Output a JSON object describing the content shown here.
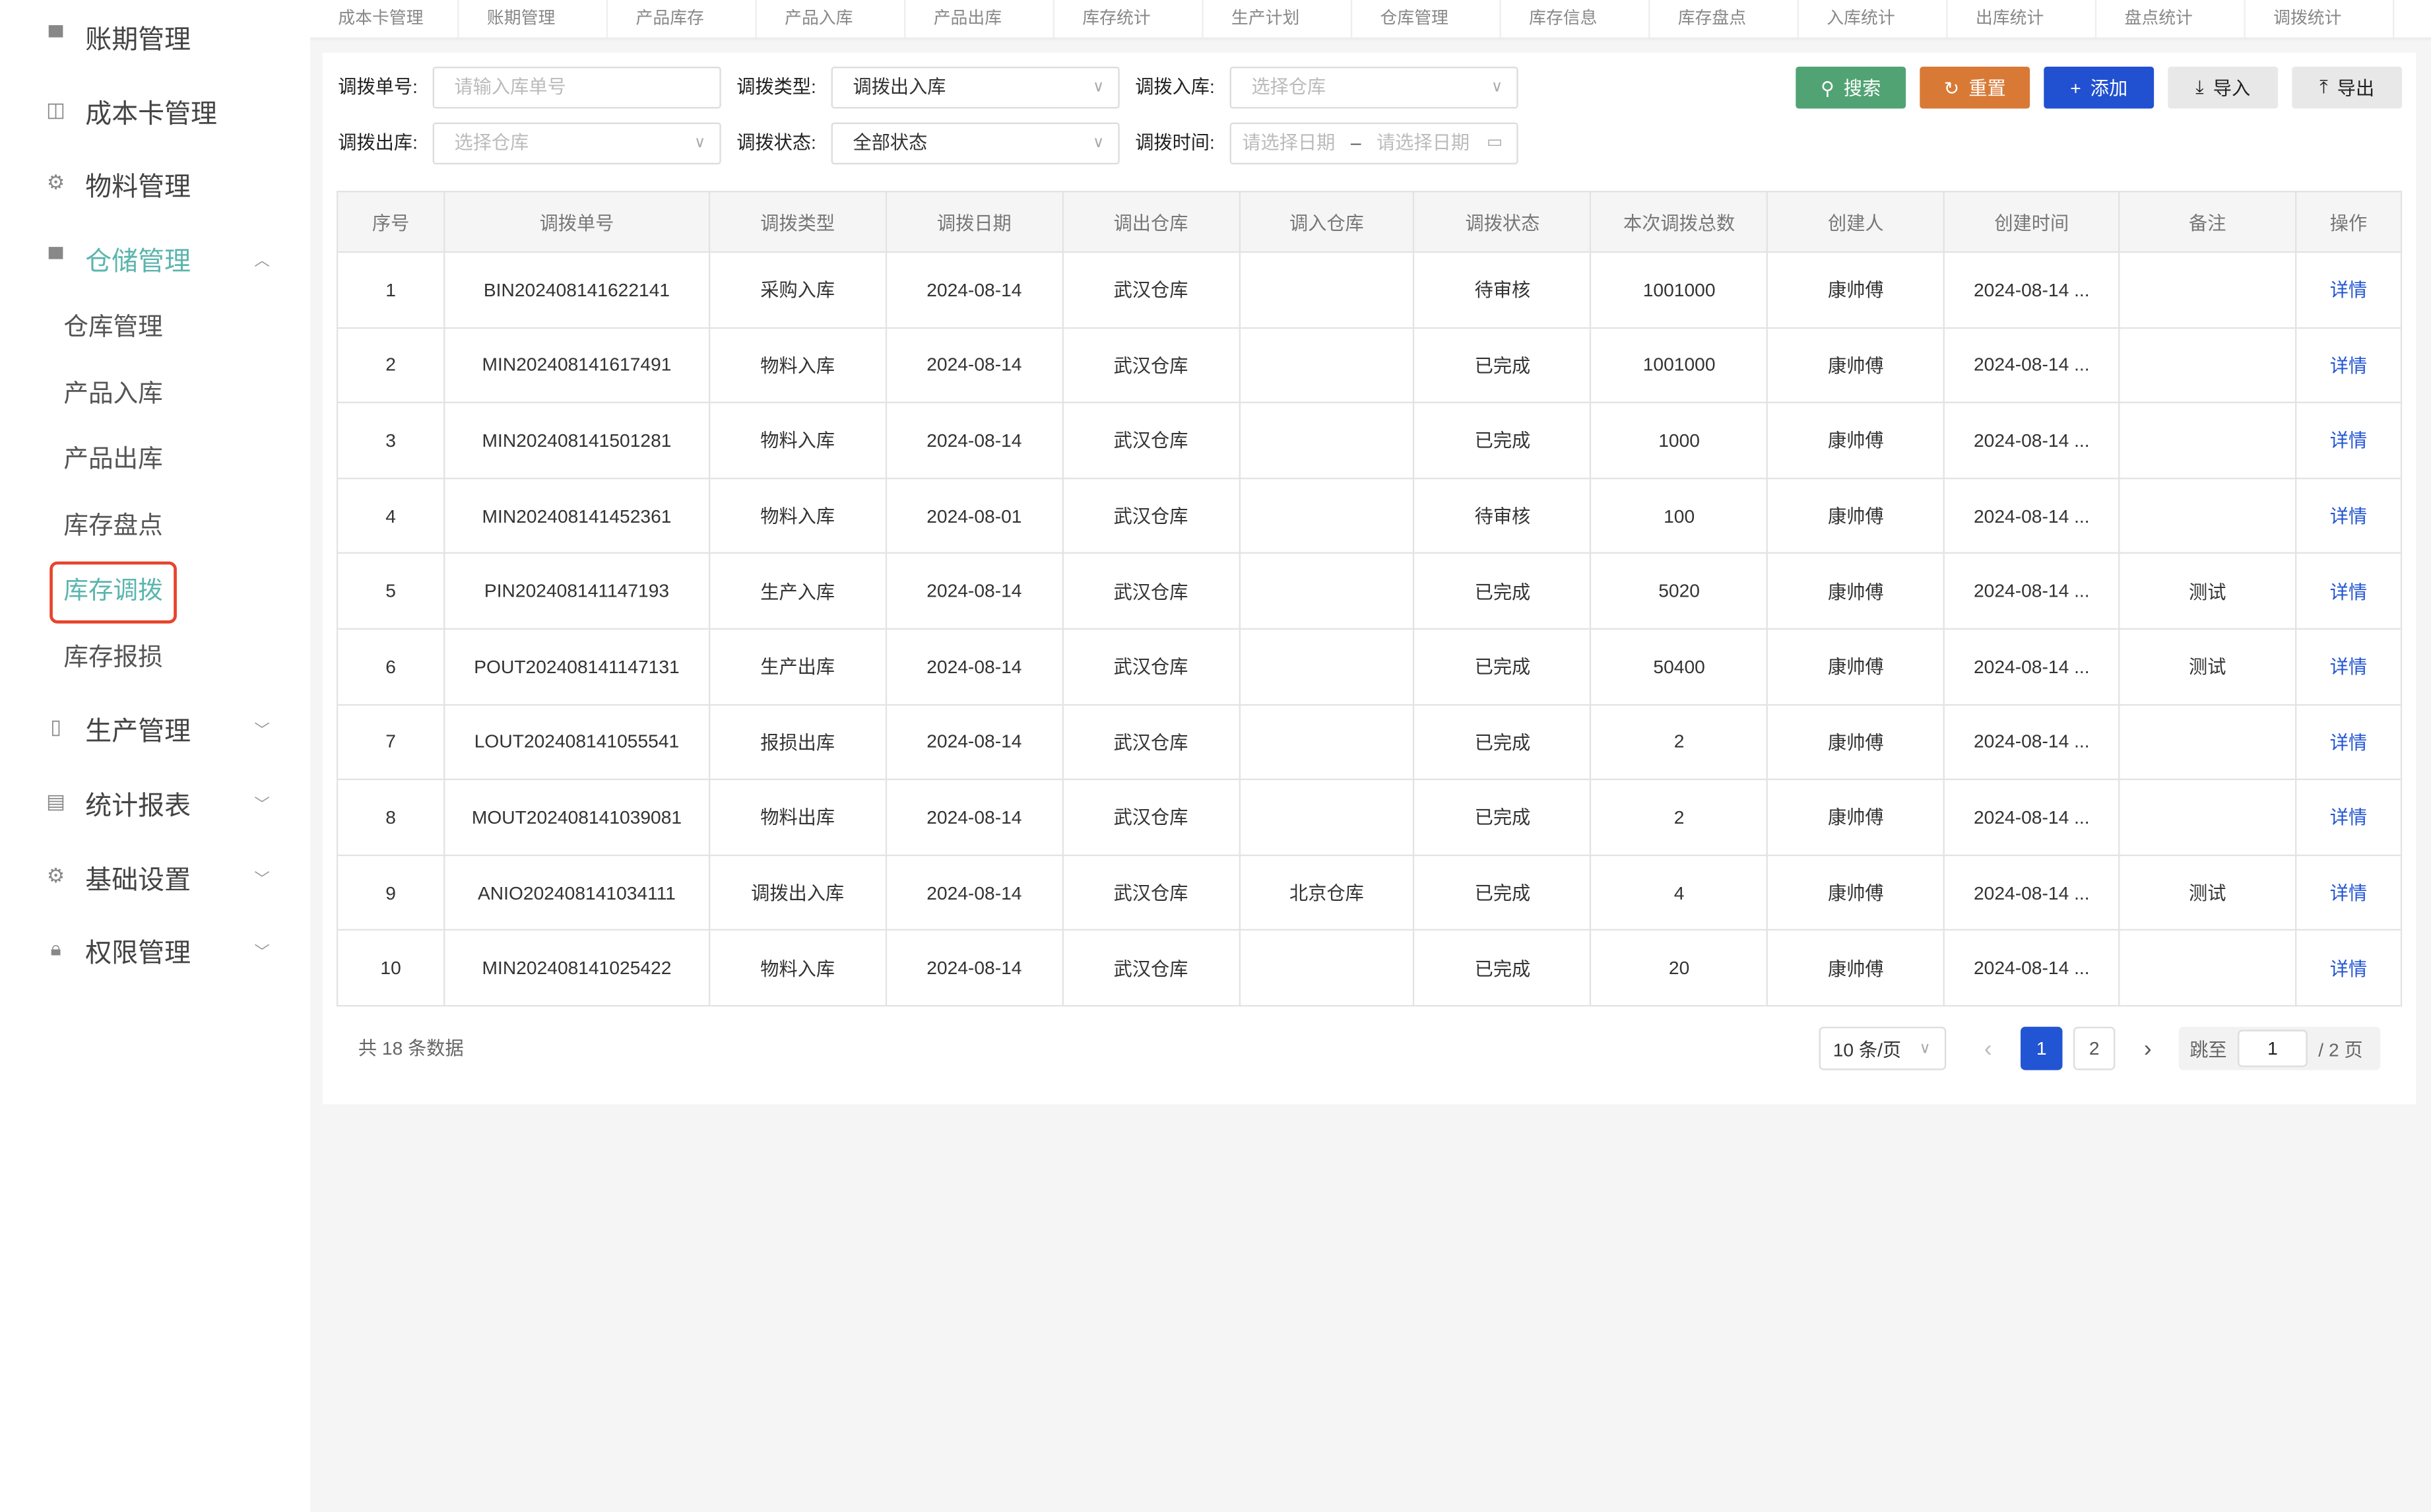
{
  "sidebar": {
    "items": [
      {
        "label": "账期管理",
        "icon": "ledger-icon"
      },
      {
        "label": "成本卡管理",
        "icon": "card-icon"
      },
      {
        "label": "物料管理",
        "icon": "chip-icon"
      },
      {
        "label": "仓储管理",
        "icon": "store-icon",
        "expanded": true,
        "children": [
          "仓库管理",
          "产品入库",
          "产品出库",
          "库存盘点",
          "库存调拨",
          "库存报损"
        ],
        "active_child": "库存调拨"
      },
      {
        "label": "生产管理",
        "icon": "production-icon"
      },
      {
        "label": "统计报表",
        "icon": "report-icon"
      },
      {
        "label": "基础设置",
        "icon": "gear-icon"
      },
      {
        "label": "权限管理",
        "icon": "lock-icon"
      }
    ],
    "accent": "#5bb5ad"
  },
  "tabs": [
    "成本卡管理",
    "账期管理",
    "产品库存",
    "产品入库",
    "产品出库",
    "库存统计",
    "生产计划",
    "仓库管理",
    "库存信息",
    "库存盘点",
    "入库统计",
    "出库统计",
    "盘点统计",
    "调拨统计"
  ],
  "filters": {
    "order_no": {
      "label": "调拨单号:",
      "placeholder": "请输入库单号"
    },
    "type": {
      "label": "调拨类型:",
      "value": "调拨出入库"
    },
    "in_wh": {
      "label": "调拨入库:",
      "placeholder": "选择仓库"
    },
    "out_wh": {
      "label": "调拨出库:",
      "placeholder": "选择仓库"
    },
    "status": {
      "label": "调拨状态:",
      "value": "全部状态"
    },
    "time": {
      "label": "调拨时间:",
      "start_placeholder": "请选择日期",
      "sep": "–",
      "end_placeholder": "请选择日期"
    }
  },
  "buttons": {
    "search": "搜索",
    "reset": "重置",
    "add": "添加",
    "import": "导入",
    "export": "导出",
    "colors": {
      "search": "#52a374",
      "reset": "#d87a36",
      "add": "#2150d1",
      "neutral": "#e8e8e8"
    }
  },
  "table": {
    "columns": [
      "序号",
      "调拨单号",
      "调拨类型",
      "调拨日期",
      "调出仓库",
      "调入仓库",
      "调拨状态",
      "本次调拨总数",
      "创建人",
      "创建时间",
      "备注",
      "操作"
    ],
    "rows": [
      [
        "1",
        "BIN202408141622141",
        "采购入库",
        "2024-08-14",
        "武汉仓库",
        "",
        "待审核",
        "1001000",
        "康帅傅",
        "2024-08-14 ...",
        "",
        "详情"
      ],
      [
        "2",
        "MIN202408141617491",
        "物料入库",
        "2024-08-14",
        "武汉仓库",
        "",
        "已完成",
        "1001000",
        "康帅傅",
        "2024-08-14 ...",
        "",
        "详情"
      ],
      [
        "3",
        "MIN202408141501281",
        "物料入库",
        "2024-08-14",
        "武汉仓库",
        "",
        "已完成",
        "1000",
        "康帅傅",
        "2024-08-14 ...",
        "",
        "详情"
      ],
      [
        "4",
        "MIN202408141452361",
        "物料入库",
        "2024-08-01",
        "武汉仓库",
        "",
        "待审核",
        "100",
        "康帅傅",
        "2024-08-14 ...",
        "",
        "详情"
      ],
      [
        "5",
        "PIN202408141147193",
        "生产入库",
        "2024-08-14",
        "武汉仓库",
        "",
        "已完成",
        "5020",
        "康帅傅",
        "2024-08-14 ...",
        "测试",
        "详情"
      ],
      [
        "6",
        "POUT202408141147131",
        "生产出库",
        "2024-08-14",
        "武汉仓库",
        "",
        "已完成",
        "50400",
        "康帅傅",
        "2024-08-14 ...",
        "测试",
        "详情"
      ],
      [
        "7",
        "LOUT202408141055541",
        "报损出库",
        "2024-08-14",
        "武汉仓库",
        "",
        "已完成",
        "2",
        "康帅傅",
        "2024-08-14 ...",
        "",
        "详情"
      ],
      [
        "8",
        "MOUT202408141039081",
        "物料出库",
        "2024-08-14",
        "武汉仓库",
        "",
        "已完成",
        "2",
        "康帅傅",
        "2024-08-14 ...",
        "",
        "详情"
      ],
      [
        "9",
        "ANIO202408141034111",
        "调拨出入库",
        "2024-08-14",
        "武汉仓库",
        "北京仓库",
        "已完成",
        "4",
        "康帅傅",
        "2024-08-14 ...",
        "测试",
        "详情"
      ],
      [
        "10",
        "MIN202408141025422",
        "物料入库",
        "2024-08-14",
        "武汉仓库",
        "",
        "已完成",
        "20",
        "康帅傅",
        "2024-08-14 ...",
        "",
        "详情"
      ]
    ]
  },
  "pagination": {
    "total": "共 18 条数据",
    "page_size": "10 条/页",
    "pages": [
      "1",
      "2"
    ],
    "current": "1",
    "jump_label": "跳至",
    "jump_value": "1",
    "total_pages": "/ 2 页",
    "prev": "‹",
    "next": "›"
  }
}
